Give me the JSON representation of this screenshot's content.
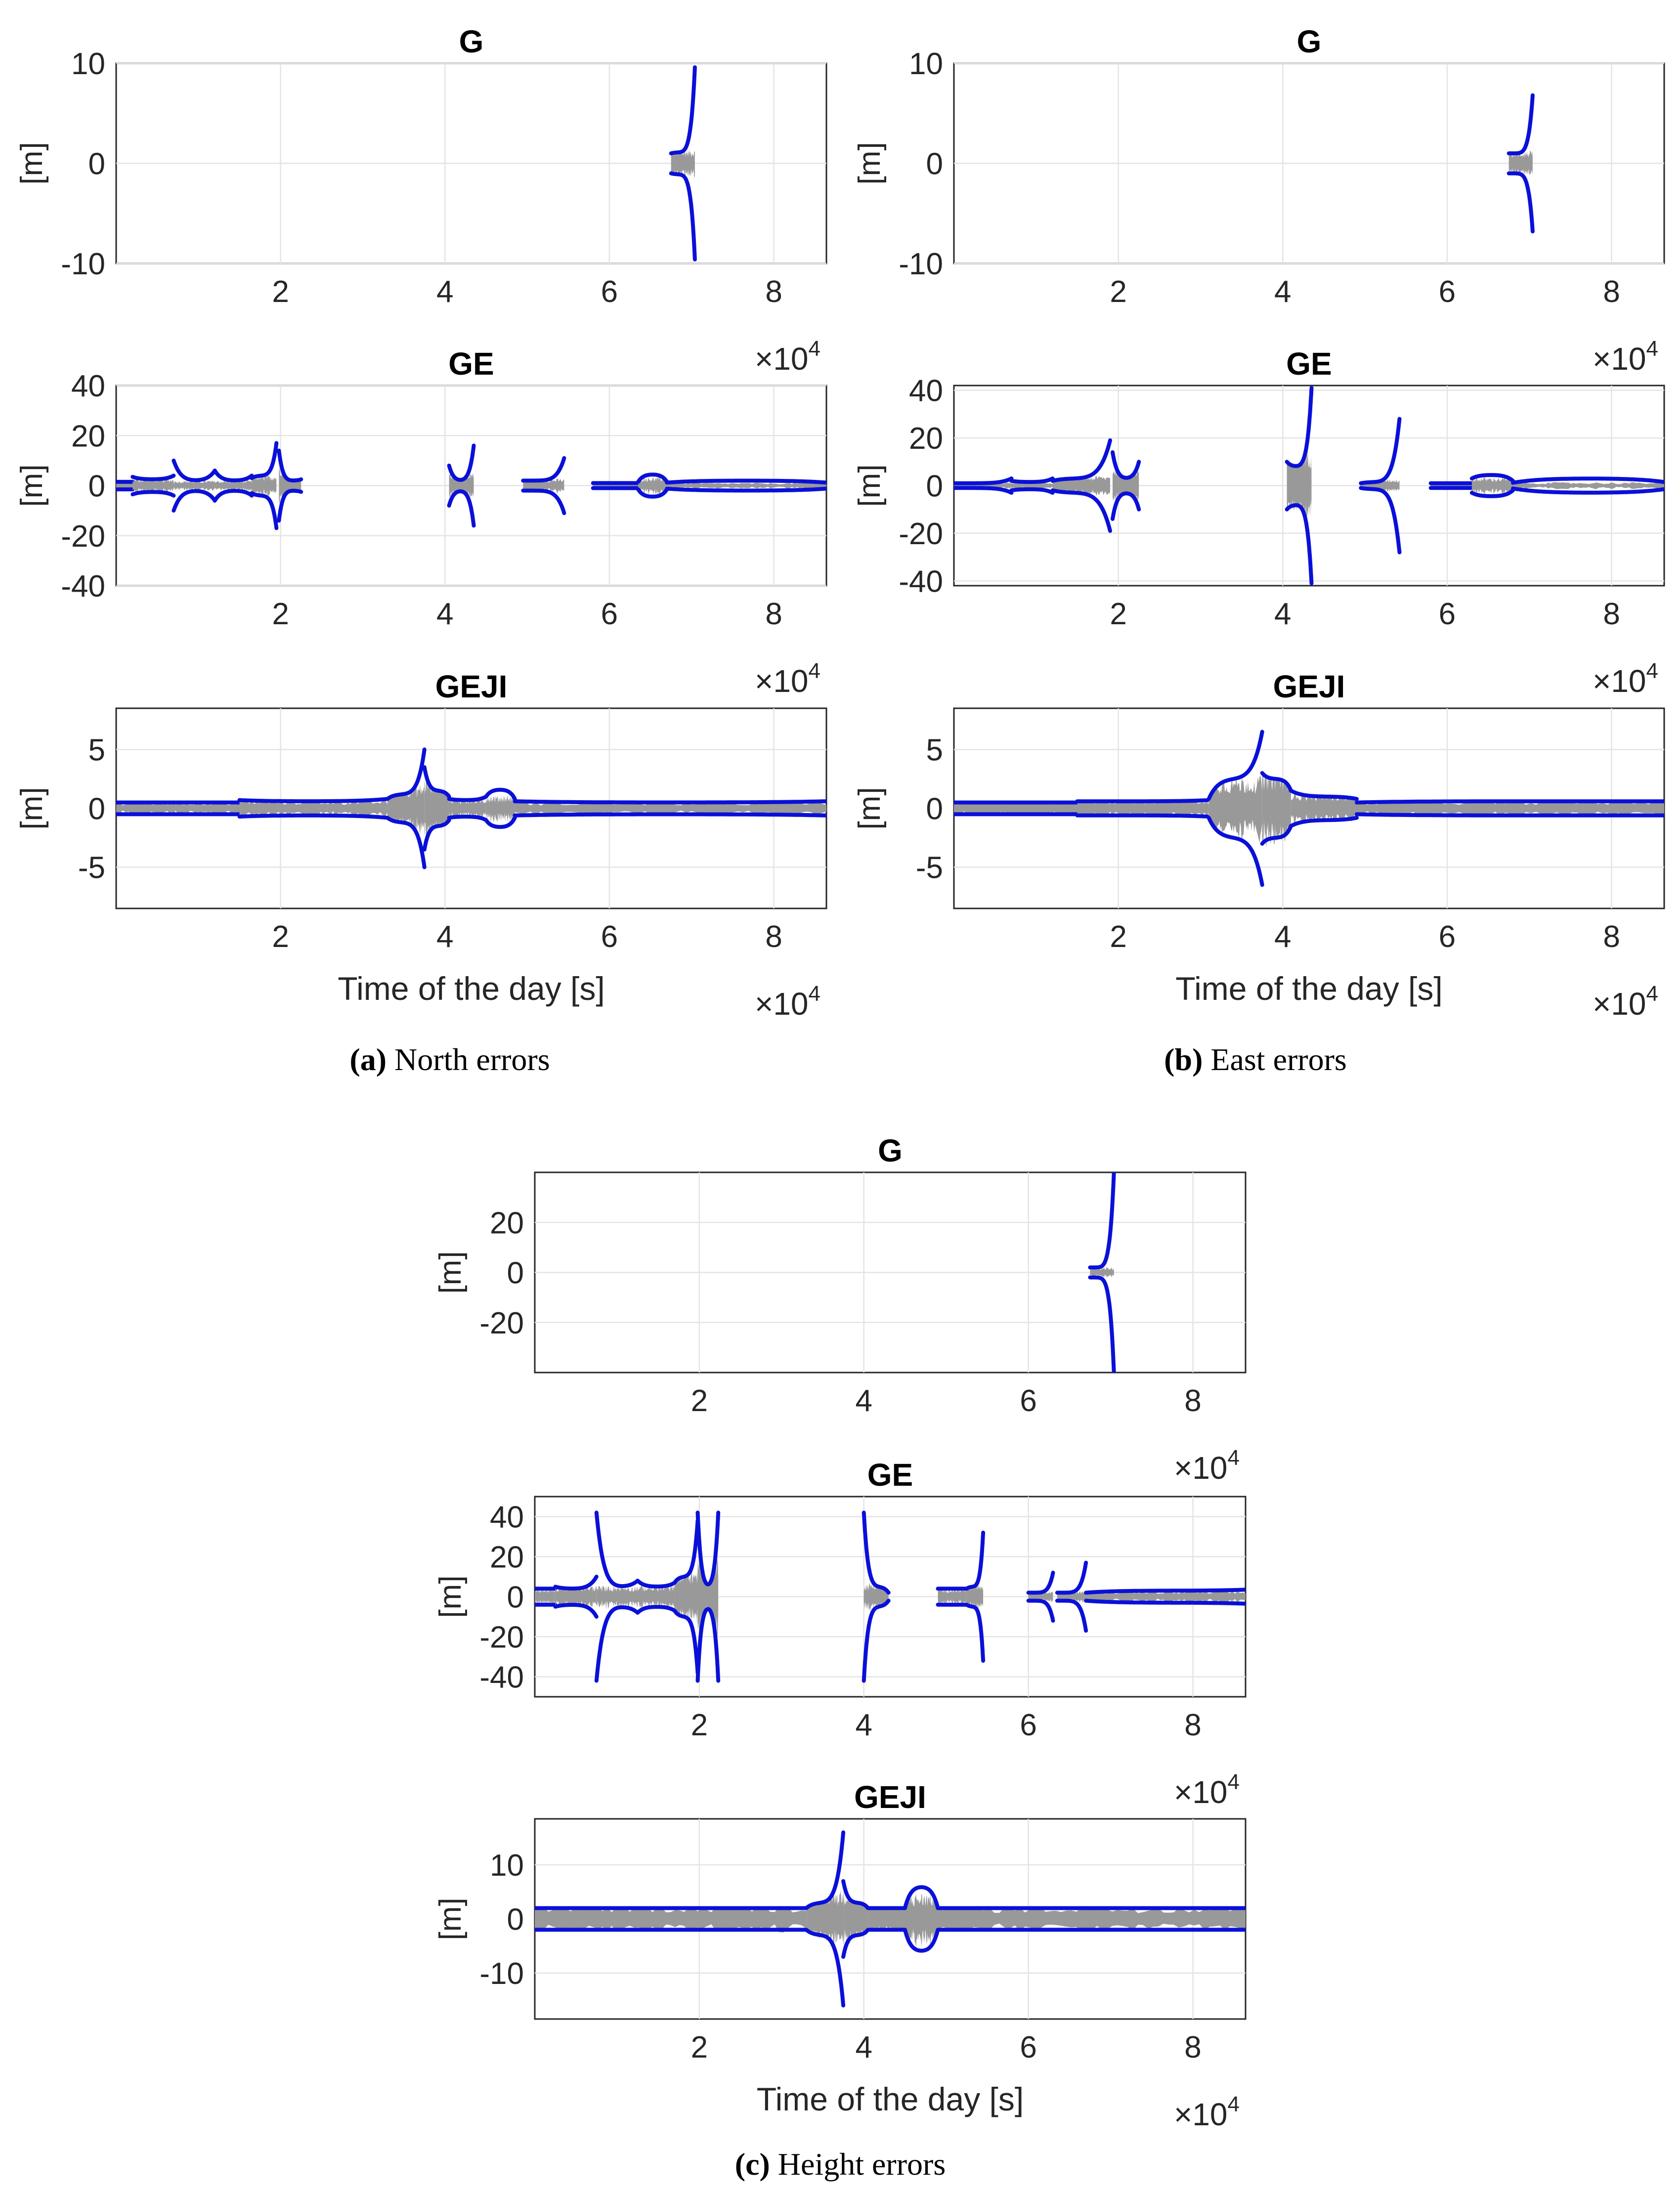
{
  "figure": {
    "panels": [
      {
        "id": "a",
        "caption_label": "(a)",
        "caption_text": "North errors"
      },
      {
        "id": "b",
        "caption_label": "(b)",
        "caption_text": "East errors"
      },
      {
        "id": "c",
        "caption_label": "(c)",
        "caption_text": "Height errors"
      }
    ]
  },
  "colors": {
    "envelope": "#0a10d8",
    "errors": "#999999",
    "axis": "#262626",
    "grid": "#e4e4e4"
  },
  "chart_data": [
    {
      "panel": "a",
      "subplot": "G",
      "type": "line",
      "title": "G",
      "ylabel": "[m]",
      "xlabel": "",
      "xlim": [
        0,
        86400
      ],
      "ylim": [
        -10,
        10
      ],
      "yticks": [
        -10,
        0,
        10
      ],
      "xticks": [
        2,
        4,
        6,
        8
      ],
      "xmult": "×10",
      "xmult_exp": "4",
      "segments": [
        {
          "x0": 67500,
          "x1": 70400,
          "amp": [
            1.0,
            1.1,
            9.6
          ],
          "noise": 1.0
        }
      ]
    },
    {
      "panel": "a",
      "subplot": "GE",
      "type": "line",
      "title": "GE",
      "ylabel": "[m]",
      "xlabel": "",
      "xlim": [
        0,
        86400
      ],
      "ylim": [
        -40,
        40
      ],
      "yticks": [
        -40,
        -20,
        0,
        20,
        40
      ],
      "xticks": [
        2,
        4,
        6,
        8
      ],
      "xmult": "×10",
      "xmult_exp": "4",
      "segments": [
        {
          "x0": 0,
          "x1": 2000,
          "amp": [
            1.5,
            1.5,
            1.5
          ],
          "noise": 1.2
        },
        {
          "x0": 2000,
          "x1": 7000,
          "amp": [
            3.5,
            2.5,
            4.0
          ],
          "noise": 2.0
        },
        {
          "x0": 7000,
          "x1": 12000,
          "amp": [
            10.0,
            2.0,
            6.0
          ],
          "noise": 1.5
        },
        {
          "x0": 12000,
          "x1": 16500,
          "amp": [
            6.0,
            2.0,
            4.0
          ],
          "noise": 1.5
        },
        {
          "x0": 16500,
          "x1": 19500,
          "amp": [
            3.0,
            4.0,
            17.0
          ],
          "noise": 3.0
        },
        {
          "x0": 19800,
          "x1": 22500,
          "amp": [
            14.0,
            2.0,
            2.5
          ],
          "noise": 6.0
        },
        {
          "x0": 40500,
          "x1": 43500,
          "amp": [
            8.0,
            2.0,
            16.0
          ],
          "noise": 4.0
        },
        {
          "x0": 49500,
          "x1": 54500,
          "amp": [
            2.0,
            2.0,
            11.0
          ],
          "noise": 2.0
        },
        {
          "x0": 58000,
          "x1": 63500,
          "amp": [
            1.0,
            1.0,
            1.0
          ],
          "noise": 0.8
        },
        {
          "x0": 63500,
          "x1": 67000,
          "amp": [
            1.5,
            4.5,
            1.5
          ],
          "noise": 2.5
        },
        {
          "x0": 67000,
          "x1": 86400,
          "amp": [
            1.2,
            2.0,
            1.2
          ],
          "noise": 0.8
        }
      ]
    },
    {
      "panel": "a",
      "subplot": "GEJI",
      "type": "line",
      "title": "GEJI",
      "ylabel": "[m]",
      "xlabel": "Time of the day [s]",
      "xlim": [
        0,
        86400
      ],
      "ylim": [
        -8.5,
        8.5
      ],
      "yticks": [
        -5,
        0,
        5
      ],
      "xticks": [
        2,
        4,
        6,
        8
      ],
      "xmult": "×10",
      "xmult_exp": "4",
      "segments": [
        {
          "x0": 0,
          "x1": 15000,
          "amp": [
            0.5,
            0.5,
            0.5
          ],
          "noise": 0.4
        },
        {
          "x0": 15000,
          "x1": 33000,
          "amp": [
            0.7,
            0.6,
            0.8
          ],
          "noise": 0.5
        },
        {
          "x0": 33000,
          "x1": 37500,
          "amp": [
            0.8,
            1.2,
            5.0
          ],
          "noise": 1.5
        },
        {
          "x0": 37500,
          "x1": 40500,
          "amp": [
            3.5,
            1.5,
            1.0
          ],
          "noise": 2.0
        },
        {
          "x0": 40500,
          "x1": 45000,
          "amp": [
            0.8,
            0.7,
            1.0
          ],
          "noise": 0.6
        },
        {
          "x0": 45000,
          "x1": 48500,
          "amp": [
            1.0,
            1.6,
            0.8
          ],
          "noise": 0.8
        },
        {
          "x0": 48500,
          "x1": 86400,
          "amp": [
            0.6,
            0.5,
            0.6
          ],
          "noise": 0.4
        }
      ]
    },
    {
      "panel": "b",
      "subplot": "G",
      "type": "line",
      "title": "G",
      "ylabel": "[m]",
      "xlabel": "",
      "xlim": [
        0,
        86400
      ],
      "ylim": [
        -10,
        10
      ],
      "yticks": [
        -10,
        0,
        10
      ],
      "xticks": [
        2,
        4,
        6,
        8
      ],
      "xmult": "×10",
      "xmult_exp": "4",
      "segments": [
        {
          "x0": 67500,
          "x1": 70400,
          "amp": [
            1.0,
            1.0,
            6.8
          ],
          "noise": 0.9
        }
      ]
    },
    {
      "panel": "b",
      "subplot": "GE",
      "type": "line",
      "title": "GE",
      "ylabel": "[m]",
      "xlabel": "",
      "xlim": [
        0,
        86400
      ],
      "ylim": [
        -42,
        42
      ],
      "yticks": [
        -40,
        -20,
        0,
        20,
        40
      ],
      "xticks": [
        2,
        4,
        6,
        8
      ],
      "xmult": "×10",
      "xmult_exp": "4",
      "segments": [
        {
          "x0": 0,
          "x1": 7000,
          "amp": [
            1.0,
            1.0,
            3.0
          ],
          "noise": 1.0
        },
        {
          "x0": 7000,
          "x1": 12000,
          "amp": [
            2.0,
            1.5,
            3.0
          ],
          "noise": 1.0
        },
        {
          "x0": 12000,
          "x1": 19000,
          "amp": [
            2.0,
            3.0,
            19.0
          ],
          "noise": 3.0
        },
        {
          "x0": 19300,
          "x1": 22500,
          "amp": [
            14.0,
            3.0,
            10.0
          ],
          "noise": 6.0
        },
        {
          "x0": 40500,
          "x1": 43500,
          "amp": [
            10.0,
            8.0,
            41.0
          ],
          "noise": 12.0
        },
        {
          "x0": 49500,
          "x1": 54200,
          "amp": [
            1.0,
            1.5,
            28.0
          ],
          "noise": 2.0
        },
        {
          "x0": 58000,
          "x1": 63000,
          "amp": [
            1.0,
            1.0,
            1.0
          ],
          "noise": 0.8
        },
        {
          "x0": 63000,
          "x1": 68000,
          "amp": [
            3.0,
            4.5,
            2.0
          ],
          "noise": 2.5
        },
        {
          "x0": 68000,
          "x1": 86400,
          "amp": [
            1.2,
            3.0,
            1.5
          ],
          "noise": 1.0
        }
      ]
    },
    {
      "panel": "b",
      "subplot": "GEJI",
      "type": "line",
      "title": "GEJI",
      "ylabel": "[m]",
      "xlabel": "Time of the day [s]",
      "xlim": [
        0,
        86400
      ],
      "ylim": [
        -8.5,
        8.5
      ],
      "yticks": [
        -5,
        0,
        5
      ],
      "xticks": [
        2,
        4,
        6,
        8
      ],
      "xmult": "×10",
      "xmult_exp": "4",
      "segments": [
        {
          "x0": 0,
          "x1": 15000,
          "amp": [
            0.5,
            0.5,
            0.5
          ],
          "noise": 0.5
        },
        {
          "x0": 15000,
          "x1": 31000,
          "amp": [
            0.6,
            0.6,
            0.7
          ],
          "noise": 0.6
        },
        {
          "x0": 31000,
          "x1": 37500,
          "amp": [
            0.8,
            2.5,
            6.5
          ],
          "noise": 2.0
        },
        {
          "x0": 37500,
          "x1": 41000,
          "amp": [
            3.0,
            2.5,
            1.5
          ],
          "noise": 2.5
        },
        {
          "x0": 41000,
          "x1": 49000,
          "amp": [
            1.5,
            1.0,
            0.8
          ],
          "noise": 1.0
        },
        {
          "x0": 49000,
          "x1": 86400,
          "amp": [
            0.5,
            0.6,
            0.6
          ],
          "noise": 0.5
        }
      ]
    },
    {
      "panel": "c",
      "subplot": "G",
      "type": "line",
      "title": "G",
      "ylabel": "[m]",
      "xlabel": "",
      "xlim": [
        0,
        86400
      ],
      "ylim": [
        -40,
        40
      ],
      "yticks": [
        -20,
        0,
        20
      ],
      "xticks": [
        2,
        4,
        6,
        8
      ],
      "xmult": "×10",
      "xmult_exp": "4",
      "segments": [
        {
          "x0": 67500,
          "x1": 70400,
          "amp": [
            2.0,
            2.0,
            40.0
          ],
          "noise": 1.5
        }
      ]
    },
    {
      "panel": "c",
      "subplot": "GE",
      "type": "line",
      "title": "GE",
      "ylabel": "[m]",
      "xlabel": "",
      "xlim": [
        0,
        86400
      ],
      "ylim": [
        -50,
        50
      ],
      "yticks": [
        -40,
        -20,
        0,
        20,
        40
      ],
      "xticks": [
        2,
        4,
        6,
        8
      ],
      "xmult": "×10",
      "xmult_exp": "4",
      "segments": [
        {
          "x0": 0,
          "x1": 2500,
          "amp": [
            4.0,
            4.0,
            4.0
          ],
          "noise": 3.0
        },
        {
          "x0": 2500,
          "x1": 7500,
          "amp": [
            5.0,
            4.0,
            10.0
          ],
          "noise": 4.0
        },
        {
          "x0": 7500,
          "x1": 12500,
          "amp": [
            42.0,
            5.0,
            8.0
          ],
          "noise": 4.0
        },
        {
          "x0": 12500,
          "x1": 17000,
          "amp": [
            8.0,
            5.0,
            7.0
          ],
          "noise": 4.0
        },
        {
          "x0": 17000,
          "x1": 19800,
          "amp": [
            7.0,
            10.0,
            38.0
          ],
          "noise": 10.0
        },
        {
          "x0": 19800,
          "x1": 22300,
          "amp": [
            42.0,
            5.0,
            42.0
          ],
          "noise": 15.0
        },
        {
          "x0": 40000,
          "x1": 43000,
          "amp": [
            42.0,
            5.0,
            2.0
          ],
          "noise": 5.0
        },
        {
          "x0": 49000,
          "x1": 52500,
          "amp": [
            4.0,
            4.0,
            4.0
          ],
          "noise": 3.0
        },
        {
          "x0": 52500,
          "x1": 54500,
          "amp": [
            4.0,
            5.0,
            32.0
          ],
          "noise": 5.0
        },
        {
          "x0": 60000,
          "x1": 63000,
          "amp": [
            2.0,
            2.0,
            12.0
          ],
          "noise": 2.0
        },
        {
          "x0": 63500,
          "x1": 67000,
          "amp": [
            2.0,
            2.0,
            17.0
          ],
          "noise": 2.0
        },
        {
          "x0": 67000,
          "x1": 86400,
          "amp": [
            2.0,
            3.0,
            3.5
          ],
          "noise": 2.0
        }
      ]
    },
    {
      "panel": "c",
      "subplot": "GEJI",
      "type": "line",
      "title": "GEJI",
      "ylabel": "[m]",
      "xlabel": "Time of the day [s]",
      "xlim": [
        0,
        86400
      ],
      "ylim": [
        -18.5,
        18.5
      ],
      "yticks": [
        -10,
        0,
        10
      ],
      "xticks": [
        2,
        4,
        6,
        8
      ],
      "xmult": "×10",
      "xmult_exp": "4",
      "segments": [
        {
          "x0": 0,
          "x1": 33000,
          "amp": [
            2.0,
            2.0,
            2.0
          ],
          "noise": 2.0
        },
        {
          "x0": 33000,
          "x1": 37500,
          "amp": [
            2.0,
            3.0,
            16.0
          ],
          "noise": 4.0
        },
        {
          "x0": 37500,
          "x1": 40500,
          "amp": [
            7.0,
            3.0,
            2.0
          ],
          "noise": 4.0
        },
        {
          "x0": 40500,
          "x1": 45000,
          "amp": [
            2.0,
            2.0,
            2.0
          ],
          "noise": 2.5
        },
        {
          "x0": 45000,
          "x1": 49000,
          "amp": [
            2.0,
            6.0,
            2.0
          ],
          "noise": 3.5
        },
        {
          "x0": 49000,
          "x1": 86400,
          "amp": [
            2.0,
            2.0,
            2.0
          ],
          "noise": 1.8
        }
      ]
    }
  ]
}
